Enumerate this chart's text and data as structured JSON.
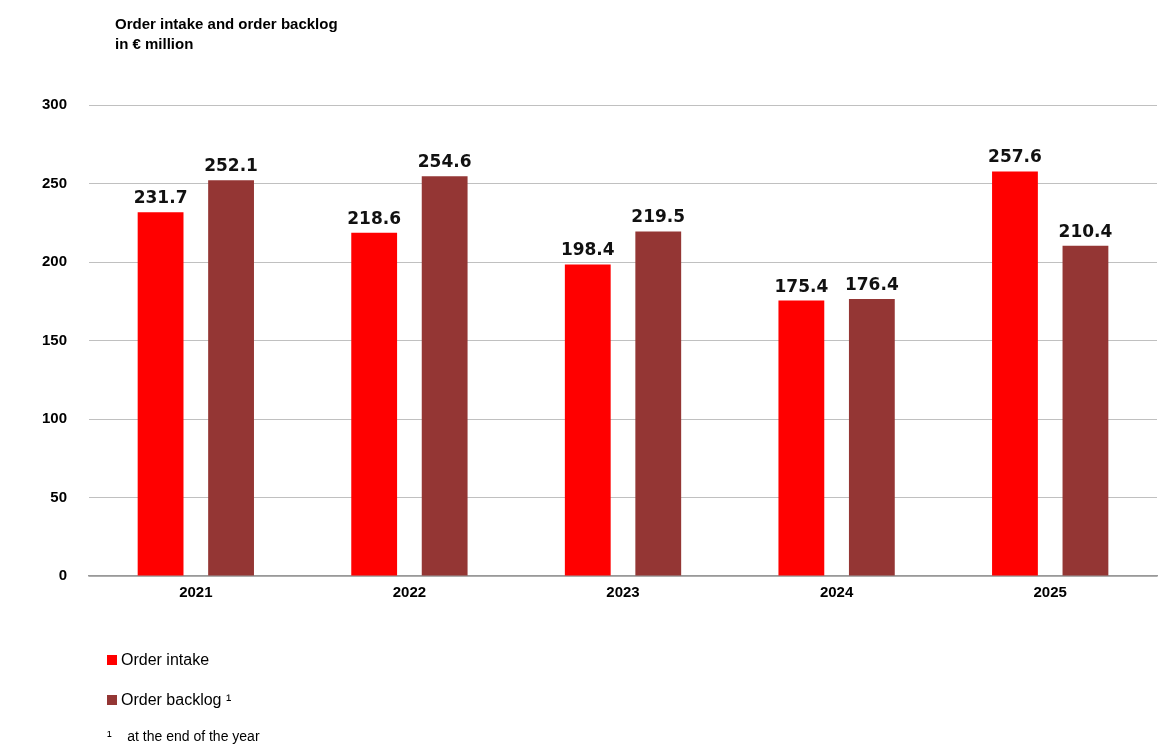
{
  "chart_data": {
    "type": "bar",
    "title": "Order intake and order backlog\nin € million",
    "categories": [
      "2021",
      "2022",
      "2023",
      "2024",
      "2025"
    ],
    "series": [
      {
        "name": "Order intake",
        "color": "#ff0000",
        "values": [
          231.7,
          218.6,
          198.4,
          175.4,
          257.6
        ]
      },
      {
        "name": "Order backlog ¹",
        "color": "#943634",
        "values": [
          252.1,
          254.6,
          219.5,
          176.4,
          210.4
        ]
      }
    ],
    "ylim": [
      0,
      300
    ],
    "yticks": [
      0,
      50,
      100,
      150,
      200,
      250,
      300
    ],
    "grid": "y",
    "legend": "bottom left",
    "data_labels": true,
    "annotations": [
      "¹    at the end of the year"
    ]
  }
}
